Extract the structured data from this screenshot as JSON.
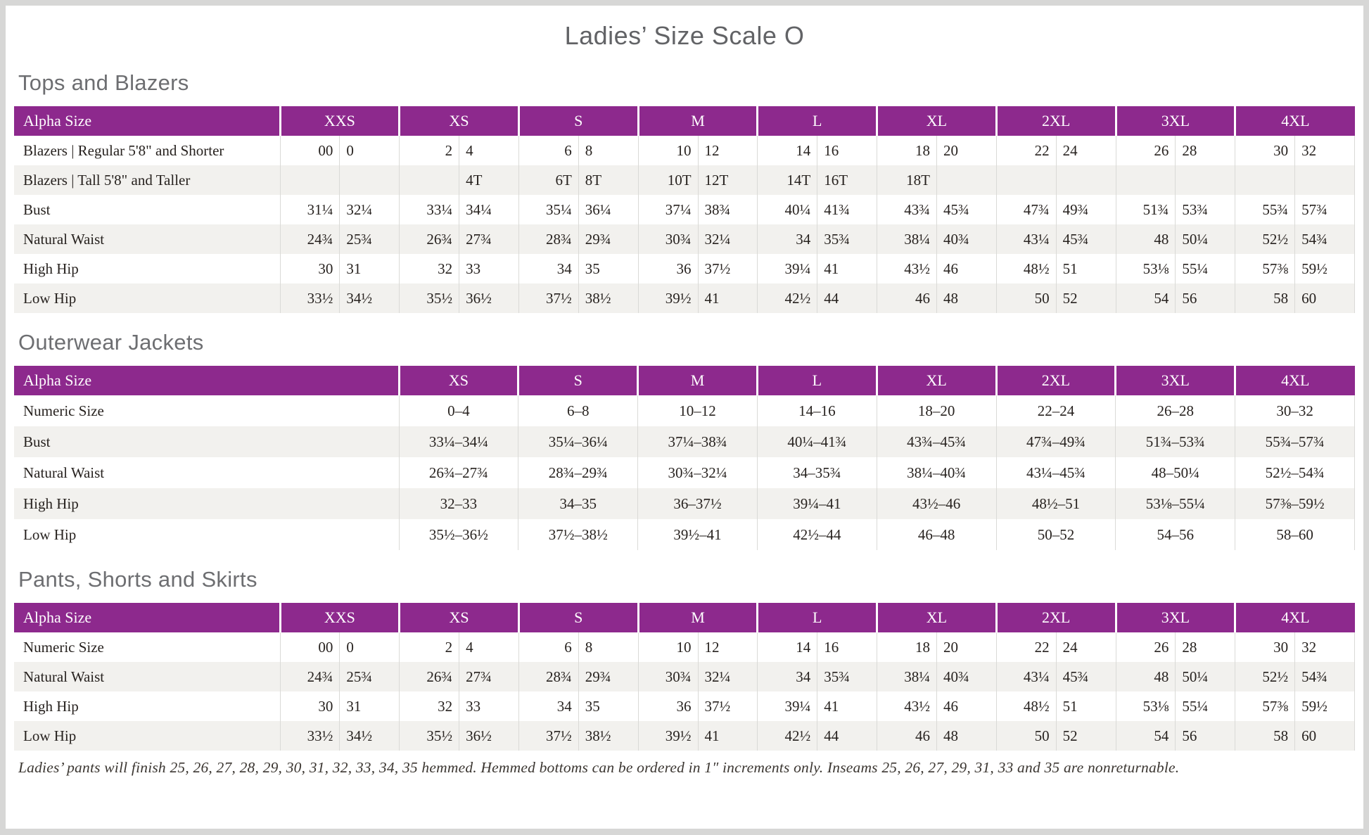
{
  "page": {
    "title": "Ladies’ Size Scale O"
  },
  "colors": {
    "header_purple": "#8d298d",
    "row_alt": "#f2f1ee",
    "grid_line": "#dadad7",
    "heading_gray": "#6d6e71",
    "title_gray": "#626366",
    "text": "#27221f",
    "page_bg": "#ffffff",
    "outer_bg": "#d7d7d6"
  },
  "tables": [
    {
      "id": "tops-and-blazers",
      "heading": "Tops and Blazers",
      "header_label": "Alpha Size",
      "layout": "paired",
      "sizes": [
        "XXS",
        "XS",
        "S",
        "M",
        "L",
        "XL",
        "2XL",
        "3XL",
        "4XL"
      ],
      "rows": [
        {
          "label": "Blazers | Regular 5'8\" and Shorter",
          "values": [
            [
              "00",
              "0"
            ],
            [
              "2",
              "4"
            ],
            [
              "6",
              "8"
            ],
            [
              "10",
              "12"
            ],
            [
              "14",
              "16"
            ],
            [
              "18",
              "20"
            ],
            [
              "22",
              "24"
            ],
            [
              "26",
              "28"
            ],
            [
              "30",
              "32"
            ]
          ]
        },
        {
          "label": "Blazers | Tall 5'8\" and Taller",
          "values": [
            [
              "",
              ""
            ],
            [
              "",
              "4T"
            ],
            [
              "6T",
              "8T"
            ],
            [
              "10T",
              "12T"
            ],
            [
              "14T",
              "16T"
            ],
            [
              "18T",
              ""
            ],
            [
              "",
              ""
            ],
            [
              "",
              ""
            ],
            [
              "",
              ""
            ]
          ]
        },
        {
          "label": "Bust",
          "values": [
            [
              "31¼",
              "32¼"
            ],
            [
              "33¼",
              "34¼"
            ],
            [
              "35¼",
              "36¼"
            ],
            [
              "37¼",
              "38¾"
            ],
            [
              "40¼",
              "41¾"
            ],
            [
              "43¾",
              "45¾"
            ],
            [
              "47¾",
              "49¾"
            ],
            [
              "51¾",
              "53¾"
            ],
            [
              "55¾",
              "57¾"
            ]
          ]
        },
        {
          "label": "Natural Waist",
          "values": [
            [
              "24¾",
              "25¾"
            ],
            [
              "26¾",
              "27¾"
            ],
            [
              "28¾",
              "29¾"
            ],
            [
              "30¾",
              "32¼"
            ],
            [
              "34",
              "35¾"
            ],
            [
              "38¼",
              "40¾"
            ],
            [
              "43¼",
              "45¾"
            ],
            [
              "48",
              "50¼"
            ],
            [
              "52½",
              "54¾"
            ]
          ]
        },
        {
          "label": "High Hip",
          "values": [
            [
              "30",
              "31"
            ],
            [
              "32",
              "33"
            ],
            [
              "34",
              "35"
            ],
            [
              "36",
              "37½"
            ],
            [
              "39¼",
              "41"
            ],
            [
              "43½",
              "46"
            ],
            [
              "48½",
              "51"
            ],
            [
              "53⅛",
              "55¼"
            ],
            [
              "57⅜",
              "59½"
            ]
          ]
        },
        {
          "label": "Low Hip",
          "values": [
            [
              "33½",
              "34½"
            ],
            [
              "35½",
              "36½"
            ],
            [
              "37½",
              "38½"
            ],
            [
              "39½",
              "41"
            ],
            [
              "42½",
              "44"
            ],
            [
              "46",
              "48"
            ],
            [
              "50",
              "52"
            ],
            [
              "54",
              "56"
            ],
            [
              "58",
              "60"
            ]
          ]
        }
      ]
    },
    {
      "id": "outerwear-jackets",
      "heading": "Outerwear Jackets",
      "header_label": "Alpha Size",
      "layout": "single",
      "sizes": [
        "XS",
        "S",
        "M",
        "L",
        "XL",
        "2XL",
        "3XL",
        "4XL"
      ],
      "rows": [
        {
          "label": "Numeric Size",
          "values": [
            "0–4",
            "6–8",
            "10–12",
            "14–16",
            "18–20",
            "22–24",
            "26–28",
            "30–32"
          ]
        },
        {
          "label": "Bust",
          "values": [
            "33¼–34¼",
            "35¼–36¼",
            "37¼–38¾",
            "40¼–41¾",
            "43¾–45¾",
            "47¾–49¾",
            "51¾–53¾",
            "55¾–57¾"
          ]
        },
        {
          "label": "Natural Waist",
          "values": [
            "26¾–27¾",
            "28¾–29¾",
            "30¾–32¼",
            "34–35¾",
            "38¼–40¾",
            "43¼–45¾",
            "48–50¼",
            "52½–54¾"
          ]
        },
        {
          "label": "High Hip",
          "values": [
            "32–33",
            "34–35",
            "36–37½",
            "39¼–41",
            "43½–46",
            "48½–51",
            "53⅛–55¼",
            "57⅜–59½"
          ]
        },
        {
          "label": "Low Hip",
          "values": [
            "35½–36½",
            "37½–38½",
            "39½–41",
            "42½–44",
            "46–48",
            "50–52",
            "54–56",
            "58–60"
          ]
        }
      ]
    },
    {
      "id": "pants-shorts-and-skirts",
      "heading": "Pants, Shorts and Skirts",
      "header_label": "Alpha Size",
      "layout": "paired",
      "sizes": [
        "XXS",
        "XS",
        "S",
        "M",
        "L",
        "XL",
        "2XL",
        "3XL",
        "4XL"
      ],
      "rows": [
        {
          "label": "Numeric Size",
          "values": [
            [
              "00",
              "0"
            ],
            [
              "2",
              "4"
            ],
            [
              "6",
              "8"
            ],
            [
              "10",
              "12"
            ],
            [
              "14",
              "16"
            ],
            [
              "18",
              "20"
            ],
            [
              "22",
              "24"
            ],
            [
              "26",
              "28"
            ],
            [
              "30",
              "32"
            ]
          ]
        },
        {
          "label": "Natural Waist",
          "values": [
            [
              "24¾",
              "25¾"
            ],
            [
              "26¾",
              "27¾"
            ],
            [
              "28¾",
              "29¾"
            ],
            [
              "30¾",
              "32¼"
            ],
            [
              "34",
              "35¾"
            ],
            [
              "38¼",
              "40¾"
            ],
            [
              "43¼",
              "45¾"
            ],
            [
              "48",
              "50¼"
            ],
            [
              "52½",
              "54¾"
            ]
          ]
        },
        {
          "label": "High Hip",
          "values": [
            [
              "30",
              "31"
            ],
            [
              "32",
              "33"
            ],
            [
              "34",
              "35"
            ],
            [
              "36",
              "37½"
            ],
            [
              "39¼",
              "41"
            ],
            [
              "43½",
              "46"
            ],
            [
              "48½",
              "51"
            ],
            [
              "53⅛",
              "55¼"
            ],
            [
              "57⅜",
              "59½"
            ]
          ]
        },
        {
          "label": "Low Hip",
          "values": [
            [
              "33½",
              "34½"
            ],
            [
              "35½",
              "36½"
            ],
            [
              "37½",
              "38½"
            ],
            [
              "39½",
              "41"
            ],
            [
              "42½",
              "44"
            ],
            [
              "46",
              "48"
            ],
            [
              "50",
              "52"
            ],
            [
              "54",
              "56"
            ],
            [
              "58",
              "60"
            ]
          ]
        }
      ]
    }
  ],
  "footnote": "Ladies’ pants will finish 25, 26, 27, 28, 29, 30, 31, 32, 33, 34, 35 hemmed. Hemmed bottoms can be ordered in 1″ increments only. Inseams 25, 26, 27, 29, 31, 33 and 35 are nonreturnable."
}
